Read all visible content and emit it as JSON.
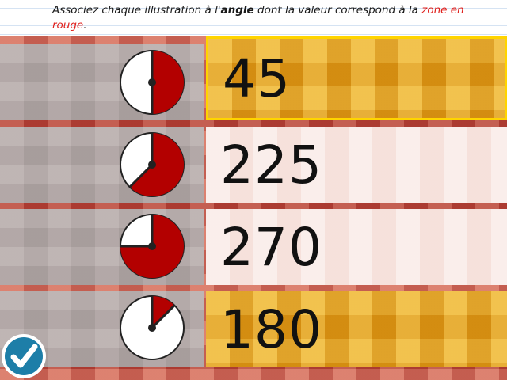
{
  "instruction": {
    "part1": "Associez chaque illustration à l'",
    "keyword": "angle",
    "part2": " dont la valeur correspond à la ",
    "highlight": "zone en rouge",
    "part3": "."
  },
  "rows": [
    {
      "angle_illustration_degrees": 180,
      "answer": "45",
      "answer_style": "gold",
      "selected": true
    },
    {
      "angle_illustration_degrees": 225,
      "answer": "225",
      "answer_style": "light",
      "selected": false
    },
    {
      "angle_illustration_degrees": 270,
      "answer": "270",
      "answer_style": "light",
      "selected": false
    },
    {
      "angle_illustration_degrees": 45,
      "answer": "180",
      "answer_style": "gold",
      "selected": false
    }
  ],
  "validate_button": {
    "icon": "checkmark-icon"
  },
  "colors": {
    "red_zone": "#b30000",
    "gold": "#e4a41c",
    "selection_border": "#ffd400",
    "validate_button": "#1d7ea8"
  }
}
